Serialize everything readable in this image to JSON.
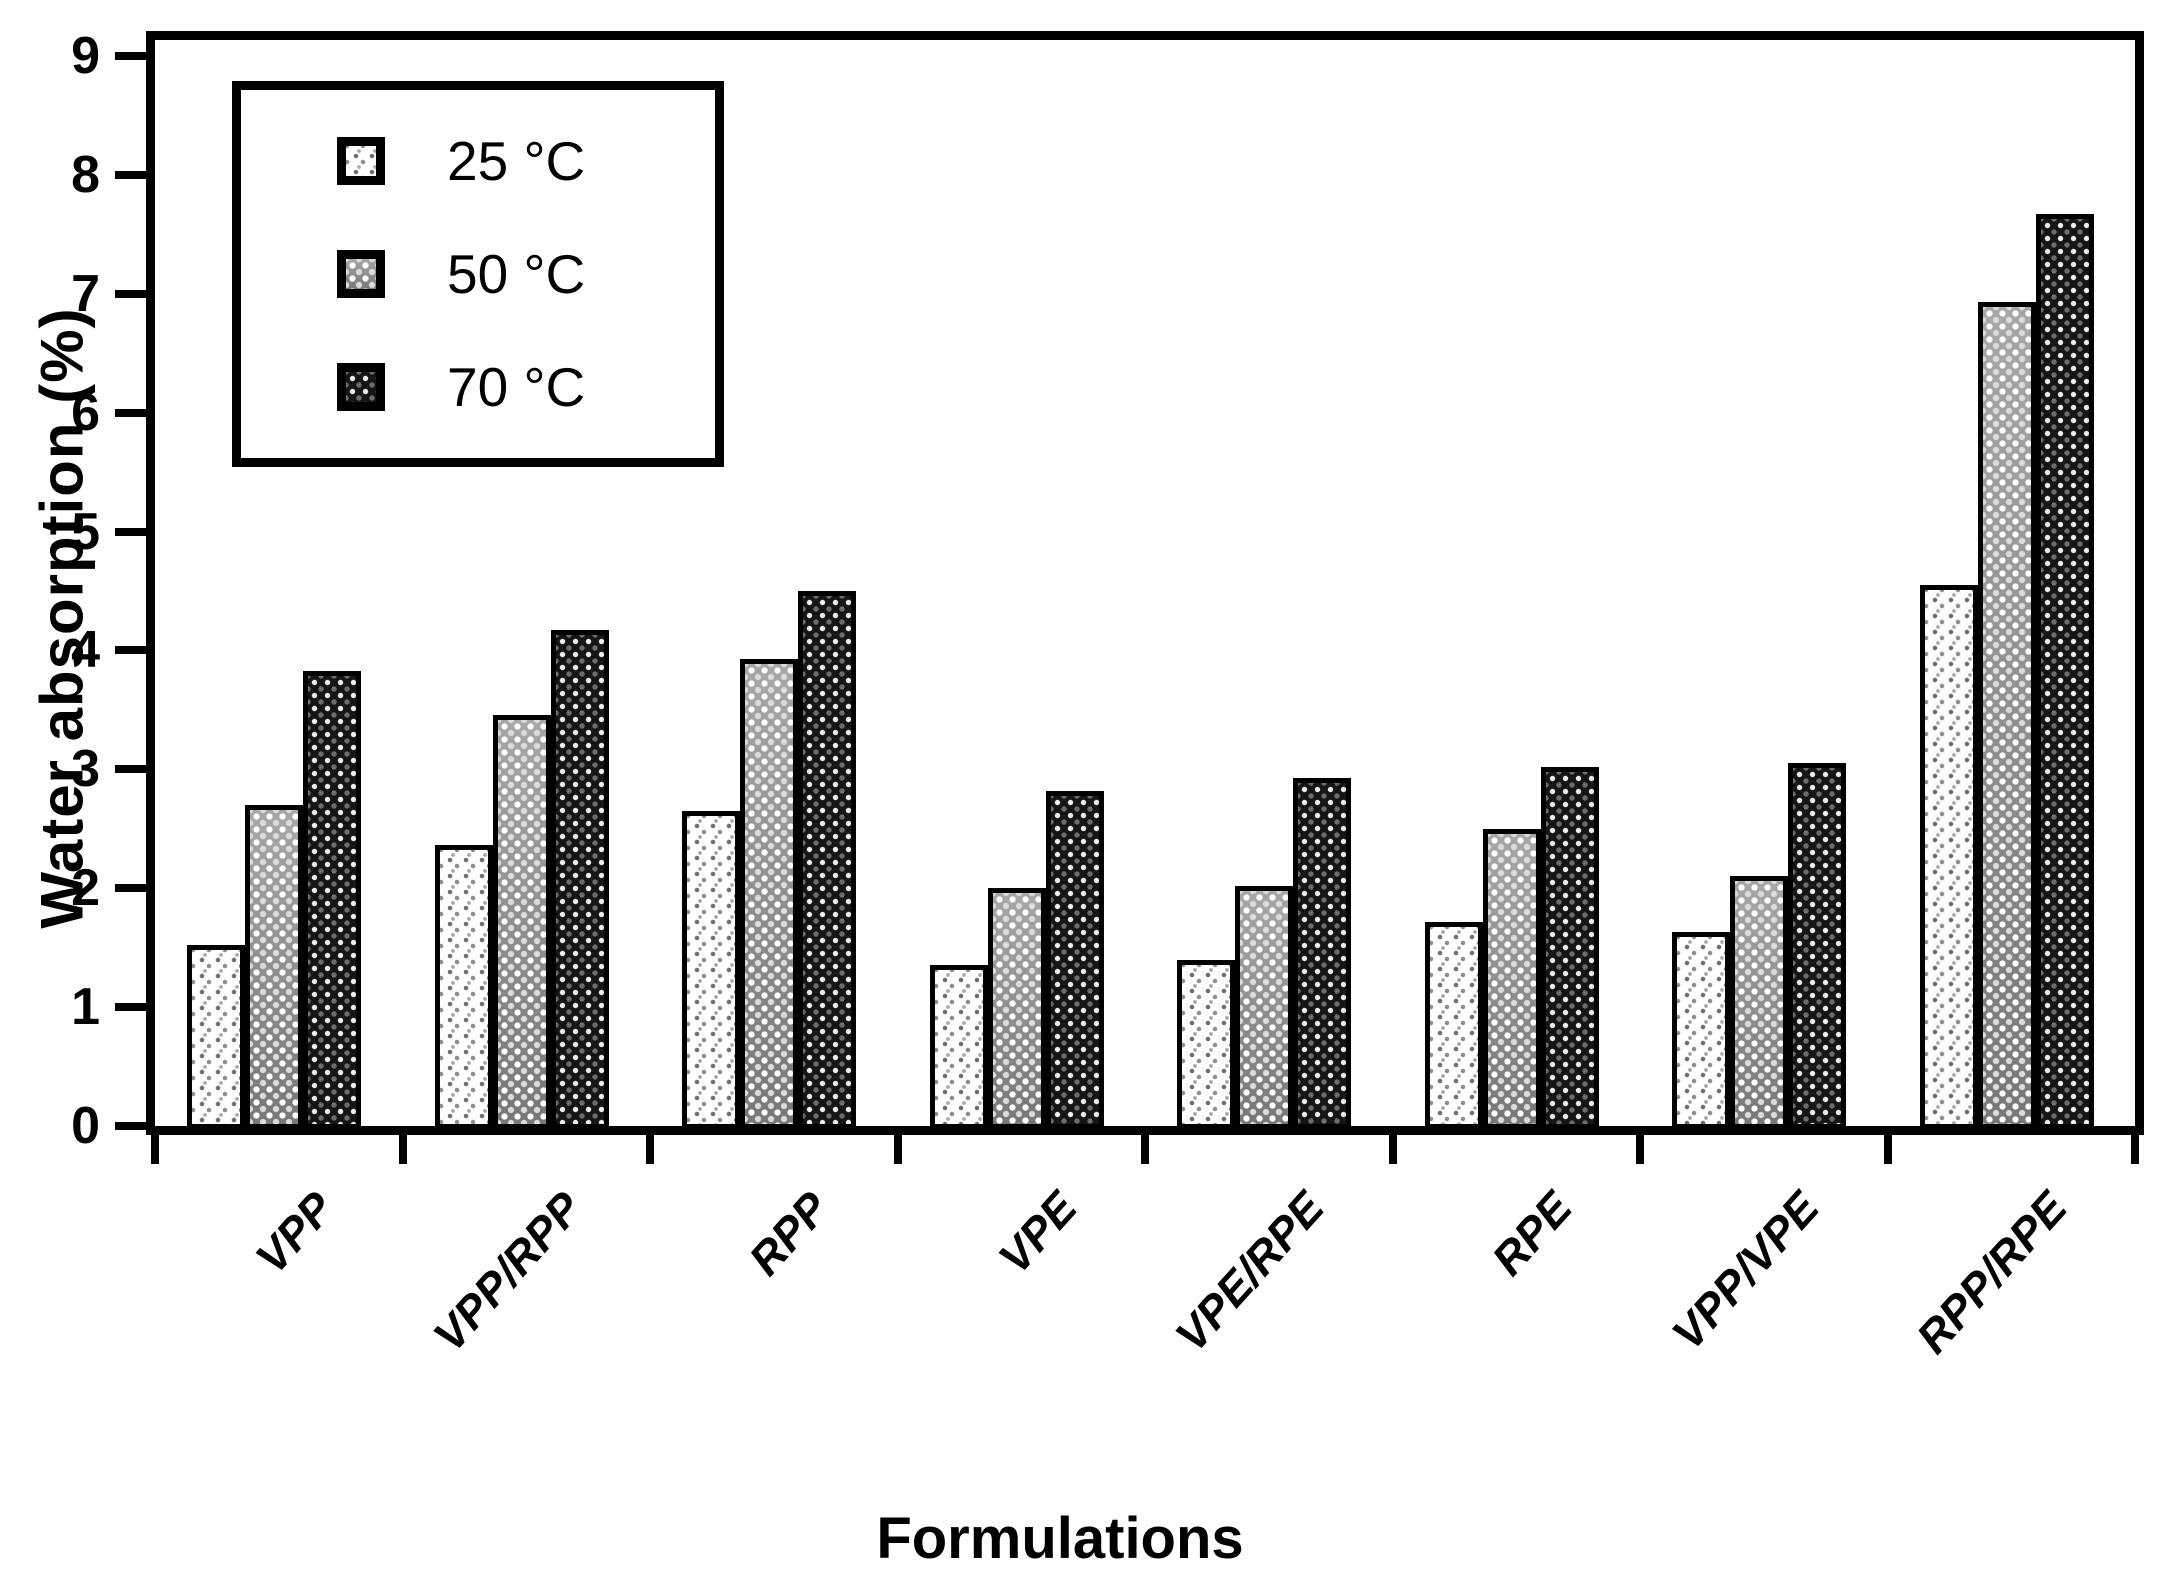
{
  "y_axis": {
    "label": "Water absorption (%)",
    "min": 0,
    "max": 9,
    "tick_step": 1,
    "ticks": [
      "0",
      "1",
      "2",
      "3",
      "4",
      "5",
      "6",
      "7",
      "8",
      "9"
    ]
  },
  "x_axis": {
    "label": "Formulations",
    "categories": [
      "VPP",
      "VPP/RPP",
      "RPP",
      "VPE",
      "VPE/RPE",
      "RPE",
      "VPP/VPE",
      "RPP/RPE"
    ]
  },
  "legend": {
    "position": "top-left",
    "entries": [
      {
        "label": "25 °C",
        "pattern": "light-speckle-on-white",
        "swatch_icon": "pattern-swatch"
      },
      {
        "label": "50 °C",
        "pattern": "white-dots-on-grey",
        "swatch_icon": "pattern-swatch"
      },
      {
        "label": "70 °C",
        "pattern": "light-dots-on-black",
        "swatch_icon": "pattern-swatch"
      }
    ]
  },
  "chart_data": {
    "type": "bar",
    "title": "",
    "xlabel": "Formulations",
    "ylabel": "Water absorption (%)",
    "ylim": [
      0,
      9
    ],
    "grid": false,
    "legend_position": "top-left-inside",
    "categories": [
      "VPP",
      "VPP/RPP",
      "RPP",
      "VPE",
      "VPE/RPE",
      "RPE",
      "VPP/VPE",
      "RPP/RPE"
    ],
    "series": [
      {
        "name": "25 °C",
        "values": [
          1.52,
          2.36,
          2.65,
          1.35,
          1.4,
          1.72,
          1.63,
          4.55
        ]
      },
      {
        "name": "50 °C",
        "values": [
          2.7,
          3.46,
          3.93,
          2.0,
          2.02,
          2.5,
          2.1,
          6.93
        ]
      },
      {
        "name": "70 °C",
        "values": [
          3.83,
          4.17,
          4.5,
          2.82,
          2.93,
          3.02,
          3.05,
          7.67
        ]
      }
    ]
  },
  "colors": {
    "ink": "#000000",
    "background": "#ffffff",
    "series_base": [
      "#ffffff",
      "#999999",
      "#151515"
    ]
  }
}
